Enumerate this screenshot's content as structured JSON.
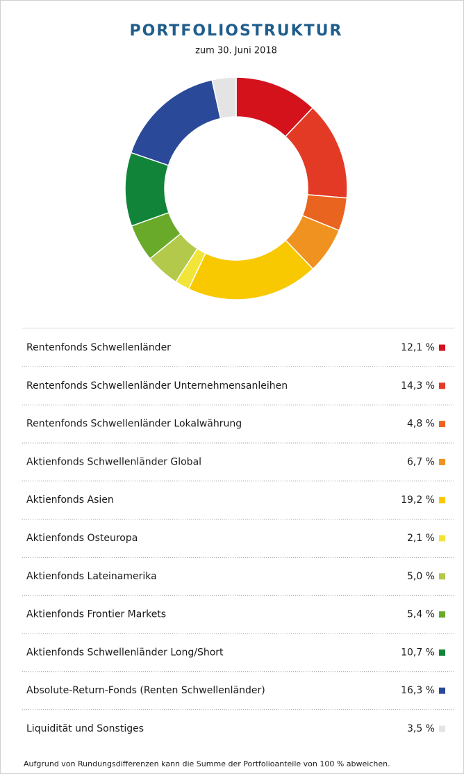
{
  "chart_data": {
    "type": "pie",
    "donut": true,
    "title": "PORTFOLIOSTRUKTUR",
    "subtitle": "zum 30. Juni 2018",
    "categories": [
      "Rentenfonds Schwellenländer",
      "Rentenfonds Schwellenländer Unternehmensanleihen",
      "Rentenfonds Schwellenländer Lokalwährung",
      "Aktienfonds Schwellenländer Global",
      "Aktienfonds Asien",
      "Aktienfonds Osteuropa",
      "Aktienfonds Lateinamerika",
      "Aktienfonds Frontier Markets",
      "Aktienfonds Schwellenländer Long/Short",
      "Absolute-Return-Fonds (Renten Schwellenländer)",
      "Liquidität und Sonstiges"
    ],
    "values": [
      12.1,
      14.3,
      4.8,
      6.7,
      19.2,
      2.1,
      5.0,
      5.4,
      10.7,
      16.3,
      3.5
    ],
    "value_labels": [
      "12,1 %",
      "14,3 %",
      "4,8 %",
      "6,7 %",
      "19,2 %",
      "2,1 %",
      "5,0 %",
      "5,4 %",
      "10,7 %",
      "16,3 %",
      "3,5 %"
    ],
    "colors": [
      "#d4121c",
      "#e33a26",
      "#e8641f",
      "#f0921f",
      "#f8c900",
      "#f2e53a",
      "#b3c94c",
      "#69aa2b",
      "#128439",
      "#2a4a99",
      "#e4e4e4"
    ],
    "footnote": "Aufgrund von Rundungsdifferenzen kann die Summe der Portfolioanteile von 100 % abweichen."
  }
}
